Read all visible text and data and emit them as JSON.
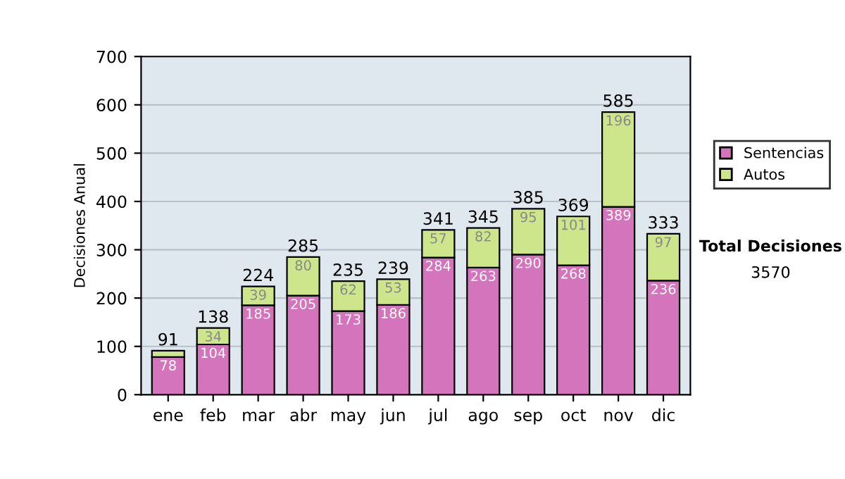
{
  "chart_data": {
    "type": "bar",
    "stacked": true,
    "ylabel": "Decisiones Anual",
    "categories": [
      "ene",
      "feb",
      "mar",
      "abr",
      "may",
      "jun",
      "jul",
      "ago",
      "sep",
      "oct",
      "nov",
      "dic"
    ],
    "series": [
      {
        "name": "Sentencias",
        "color": "#d474bc",
        "values": [
          78,
          104,
          185,
          205,
          173,
          186,
          284,
          263,
          290,
          268,
          389,
          236
        ],
        "value_labels": [
          "78",
          "104",
          "185",
          "205",
          "173",
          "186",
          "284",
          "263",
          "290",
          "268",
          "389",
          "236"
        ]
      },
      {
        "name": "Autos",
        "color": "#cde68c",
        "values": [
          13,
          34,
          39,
          80,
          62,
          53,
          57,
          82,
          95,
          101,
          196,
          97
        ],
        "value_labels": [
          null,
          "34",
          "39",
          "80",
          "62",
          "53",
          "57",
          "82",
          "95",
          "101",
          "196",
          "97"
        ]
      }
    ],
    "totals": [
      "91",
      "138",
      "224",
      "285",
      "235",
      "239",
      "341",
      "345",
      "385",
      "369",
      "585",
      "333"
    ],
    "ylim": [
      0,
      700
    ],
    "yticks": [
      0,
      100,
      200,
      300,
      400,
      500,
      600,
      700
    ],
    "grid": "y",
    "legend": "right",
    "annotations": [
      "Total Decisiones",
      "3570"
    ]
  }
}
